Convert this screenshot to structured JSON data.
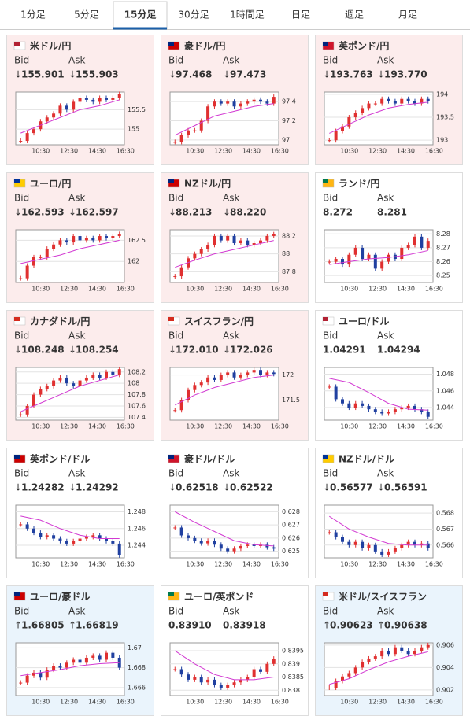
{
  "tabs": [
    "1分足",
    "5分足",
    "15分足",
    "30分足",
    "1時間足",
    "日足",
    "週足",
    "月足"
  ],
  "active_tab": 2,
  "bid_label": "Bid",
  "ask_label": "Ask",
  "time_labels": [
    "10:30",
    "12:30",
    "14:30",
    "16:30"
  ],
  "cards": [
    {
      "name": "米ドル/円",
      "arrow": "↓",
      "bid": "155.901",
      "ask": "155.903",
      "background": "#fcecec",
      "name_color": "#6a2b8c",
      "ylim": [
        154.6,
        155.95
      ],
      "yticks": [
        155,
        155.5
      ],
      "values": [
        154.7,
        154.9,
        155.0,
        155.2,
        155.3,
        155.4,
        155.6,
        155.5,
        155.7,
        155.8,
        155.75,
        155.7,
        155.8,
        155.75,
        155.8,
        155.9
      ],
      "ma": [
        154.9,
        155.1,
        155.3,
        155.5,
        155.6,
        155.75
      ]
    },
    {
      "name": "豪ドル/円",
      "arrow": "↓",
      "bid": "97.468",
      "ask": "97.473",
      "background": "#fcecec",
      "name_color": "#6a2b8c",
      "ylim": [
        96.95,
        97.5
      ],
      "yticks": [
        97,
        97.2,
        97.4
      ],
      "values": [
        96.98,
        97.05,
        97.1,
        97.1,
        97.2,
        97.35,
        97.4,
        97.38,
        97.4,
        97.35,
        97.38,
        97.4,
        97.42,
        97.4,
        97.38,
        97.45
      ],
      "ma": [
        97.05,
        97.15,
        97.25,
        97.3,
        97.35,
        97.38
      ]
    },
    {
      "name": "英ポンド/円",
      "arrow": "↓",
      "bid": "193.763",
      "ask": "193.770",
      "background": "#fcecec",
      "name_color": "#6a2b8c",
      "ylim": [
        192.9,
        194.05
      ],
      "yticks": [
        193,
        193.5,
        194
      ],
      "values": [
        193.0,
        193.2,
        193.3,
        193.5,
        193.6,
        193.7,
        193.8,
        193.8,
        193.9,
        193.85,
        193.8,
        193.9,
        193.85,
        193.8,
        193.9,
        193.85
      ],
      "ma": [
        193.15,
        193.35,
        193.55,
        193.7,
        193.78,
        193.83
      ]
    },
    {
      "name": "ユーロ/円",
      "arrow": "↓",
      "bid": "162.593",
      "ask": "162.597",
      "background": "#fcecec",
      "name_color": "#6a2b8c",
      "ylim": [
        161.5,
        162.75
      ],
      "yticks": [
        162,
        162.5
      ],
      "values": [
        161.6,
        161.9,
        162.1,
        162.1,
        162.3,
        162.4,
        162.5,
        162.45,
        162.6,
        162.5,
        162.55,
        162.5,
        162.6,
        162.55,
        162.6,
        162.65
      ],
      "ma": [
        161.95,
        162.05,
        162.15,
        162.3,
        162.4,
        162.5
      ]
    },
    {
      "name": "NZドル/円",
      "arrow": "↓",
      "bid": "88.213",
      "ask": "88.220",
      "background": "#fcecec",
      "name_color": "#6a2b8c",
      "ylim": [
        87.68,
        88.27
      ],
      "yticks": [
        87.8,
        88,
        88.2
      ],
      "values": [
        87.75,
        87.85,
        87.95,
        88.0,
        88.05,
        88.1,
        88.2,
        88.15,
        88.2,
        88.12,
        88.15,
        88.1,
        88.12,
        88.15,
        88.2,
        88.22
      ],
      "ma": [
        87.85,
        87.93,
        88.0,
        88.05,
        88.1,
        88.15
      ]
    },
    {
      "name": "ランド/円",
      "bid": "8.272",
      "ask": "8.281",
      "background": "#ffffff",
      "name_color": "#6a2b8c",
      "ylim": [
        8.245,
        8.283
      ],
      "yticks": [
        8.25,
        8.26,
        8.27,
        8.28
      ],
      "values": [
        8.26,
        8.262,
        8.258,
        8.265,
        8.27,
        8.262,
        8.265,
        8.255,
        8.26,
        8.265,
        8.262,
        8.27,
        8.272,
        8.278,
        8.27,
        8.275
      ],
      "ma": [
        8.258,
        8.26,
        8.262,
        8.263,
        8.265,
        8.268
      ]
    },
    {
      "name": "カナダドル/円",
      "arrow": "↓",
      "bid": "108.248",
      "ask": "108.254",
      "background": "#fcecec",
      "name_color": "#6a2b8c",
      "ylim": [
        107.35,
        108.28
      ],
      "yticks": [
        107.4,
        107.6,
        107.8,
        108,
        108.2
      ],
      "values": [
        107.45,
        107.6,
        107.8,
        107.9,
        107.95,
        108.05,
        108.1,
        108.0,
        107.95,
        108.05,
        108.1,
        108.15,
        108.1,
        108.2,
        108.15,
        108.25
      ],
      "ma": [
        107.5,
        107.65,
        107.8,
        107.95,
        108.05,
        108.15
      ]
    },
    {
      "name": "スイスフラン/円",
      "arrow": "↓",
      "bid": "172.010",
      "ask": "172.026",
      "background": "#fcecec",
      "name_color": "#6a2b8c",
      "ylim": [
        171.1,
        172.15
      ],
      "yticks": [
        171.5,
        172
      ],
      "values": [
        171.3,
        171.5,
        171.7,
        171.8,
        171.85,
        171.95,
        171.9,
        172.0,
        172.05,
        171.95,
        172.0,
        172.05,
        172.1,
        172.0,
        172.05,
        172.02
      ],
      "ma": [
        171.4,
        171.6,
        171.75,
        171.85,
        171.95,
        172.0
      ]
    },
    {
      "name": "ユーロ/ドル",
      "bid": "1.04291",
      "ask": "1.04294",
      "background": "#ffffff",
      "name_color": "#1b4f8c",
      "ylim": [
        1.0425,
        1.0488
      ],
      "yticks": [
        1.044,
        1.046,
        1.048
      ],
      "values": [
        1.0465,
        1.045,
        1.0445,
        1.044,
        1.0445,
        1.0442,
        1.0438,
        1.0435,
        1.0433,
        1.0435,
        1.0438,
        1.044,
        1.0442,
        1.0438,
        1.0435,
        1.0429
      ],
      "ma": [
        1.0475,
        1.047,
        1.0458,
        1.0445,
        1.0438,
        1.0437
      ]
    },
    {
      "name": "英ポンド/ドル",
      "arrow": "↓",
      "bid": "1.24282",
      "ask": "1.24292",
      "background": "#ffffff",
      "name_color": "#6a2b8c",
      "ylim": [
        1.2425,
        1.2488
      ],
      "yticks": [
        1.244,
        1.246,
        1.248
      ],
      "values": [
        1.2465,
        1.246,
        1.2455,
        1.245,
        1.2452,
        1.2448,
        1.2445,
        1.2442,
        1.2445,
        1.2448,
        1.245,
        1.2452,
        1.2448,
        1.2445,
        1.2442,
        1.2428
      ],
      "ma": [
        1.2475,
        1.247,
        1.246,
        1.2452,
        1.2448,
        1.2448
      ]
    },
    {
      "name": "豪ドル/ドル",
      "arrow": "↓",
      "bid": "0.62518",
      "ask": "0.62522",
      "background": "#ffffff",
      "name_color": "#6a2b8c",
      "ylim": [
        0.6245,
        0.6285
      ],
      "yticks": [
        0.625,
        0.626,
        0.627,
        0.628
      ],
      "values": [
        0.6268,
        0.6262,
        0.626,
        0.6258,
        0.6256,
        0.6258,
        0.6255,
        0.6252,
        0.625,
        0.6252,
        0.6254,
        0.6255,
        0.6254,
        0.6255,
        0.6253,
        0.6252
      ],
      "ma": [
        0.628,
        0.6272,
        0.6265,
        0.6258,
        0.6255,
        0.6254
      ]
    },
    {
      "name": "NZドル/ドル",
      "arrow": "↓",
      "bid": "0.56577",
      "ask": "0.56591",
      "background": "#ffffff",
      "name_color": "#6a2b8c",
      "ylim": [
        0.5652,
        0.5685
      ],
      "yticks": [
        0.566,
        0.567,
        0.568
      ],
      "values": [
        0.5668,
        0.5665,
        0.5662,
        0.566,
        0.5662,
        0.5658,
        0.566,
        0.5656,
        0.5654,
        0.5656,
        0.5658,
        0.566,
        0.5662,
        0.566,
        0.5661,
        0.5658
      ],
      "ma": [
        0.5678,
        0.567,
        0.5665,
        0.5661,
        0.566,
        0.566
      ]
    },
    {
      "name": "ユーロ/豪ドル",
      "arrow": "↑",
      "bid": "1.66805",
      "ask": "1.66819",
      "background": "#eaf4fc",
      "name_color": "#1b4f8c",
      "ylim": [
        1.6652,
        1.6705
      ],
      "yticks": [
        1.666,
        1.668,
        1.67
      ],
      "values": [
        1.6665,
        1.6672,
        1.6675,
        1.667,
        1.6678,
        1.6682,
        1.668,
        1.6685,
        1.6688,
        1.6685,
        1.669,
        1.6692,
        1.6688,
        1.6695,
        1.669,
        1.668
      ],
      "ma": [
        1.6672,
        1.6675,
        1.6678,
        1.6682,
        1.6684,
        1.6685
      ]
    },
    {
      "name": "ユーロ/英ポンド",
      "bid": "0.83910",
      "ask": "0.83918",
      "background": "#ffffff",
      "name_color": "#1b4f8c",
      "ylim": [
        0.8378,
        0.8398
      ],
      "yticks": [
        0.838,
        0.8385,
        0.839,
        0.8395
      ],
      "values": [
        0.8388,
        0.8386,
        0.8384,
        0.8385,
        0.8383,
        0.8384,
        0.8382,
        0.8381,
        0.8382,
        0.8383,
        0.8384,
        0.8385,
        0.8388,
        0.8387,
        0.839,
        0.8392
      ],
      "ma": [
        0.8395,
        0.839,
        0.8386,
        0.8384,
        0.8384,
        0.8385
      ]
    },
    {
      "name": "米ドル/スイスフラン",
      "arrow": "↑",
      "bid": "0.90623",
      "ask": "0.90638",
      "background": "#eaf4fc",
      "name_color": "#1b4f8c",
      "ylim": [
        0.9015,
        0.9062
      ],
      "yticks": [
        0.902,
        0.904,
        0.906
      ],
      "values": [
        0.9022,
        0.9028,
        0.9032,
        0.9035,
        0.904,
        0.9045,
        0.9048,
        0.905,
        0.9055,
        0.9052,
        0.9058,
        0.9055,
        0.9052,
        0.9055,
        0.9058,
        0.906
      ],
      "ma": [
        0.9025,
        0.903,
        0.9038,
        0.9045,
        0.905,
        0.9054
      ]
    }
  ]
}
